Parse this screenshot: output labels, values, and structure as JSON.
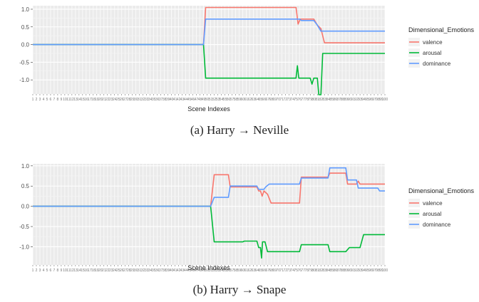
{
  "chart_data": [
    {
      "type": "line",
      "caption": "(a) Harry → Neville",
      "xlabel": "Scene Indexes",
      "ylabel": "",
      "ylim": [
        -1.4,
        1.1
      ],
      "yticks": [
        1.0,
        0.5,
        0.0,
        -0.5,
        -1.0
      ],
      "ytick_labels": [
        "1.0",
        "0.5",
        "0.0",
        "-0.5",
        "-1.0"
      ],
      "n_scenes": 100,
      "grid": true,
      "legend": {
        "title": "Dimensional_Emotions",
        "position": "right"
      },
      "series": [
        {
          "name": "valence",
          "color": "#F8766D",
          "points": [
            [
              0,
              0
            ],
            [
              48,
              0
            ],
            [
              48.6,
              1.05
            ],
            [
              74,
              1.05
            ],
            [
              74.6,
              0.58
            ],
            [
              75.2,
              0.72
            ],
            [
              79,
              0.72
            ],
            [
              80,
              0.55
            ],
            [
              81,
              0.45
            ],
            [
              82,
              0.05
            ],
            [
              99,
              0.05
            ]
          ]
        },
        {
          "name": "arousal",
          "color": "#00BA38",
          "points": [
            [
              0,
              0
            ],
            [
              48,
              0
            ],
            [
              48.6,
              -0.95
            ],
            [
              74,
              -0.95
            ],
            [
              74.4,
              -0.6
            ],
            [
              74.8,
              -0.95
            ],
            [
              78,
              -0.95
            ],
            [
              78.5,
              -1.12
            ],
            [
              79,
              -0.95
            ],
            [
              80,
              -0.95
            ],
            [
              80.4,
              -1.42
            ],
            [
              81,
              -1.42
            ],
            [
              81.5,
              -0.25
            ],
            [
              99,
              -0.25
            ]
          ]
        },
        {
          "name": "dominance",
          "color": "#619CFF",
          "points": [
            [
              0,
              0
            ],
            [
              48,
              0
            ],
            [
              48.6,
              0.72
            ],
            [
              75,
              0.72
            ],
            [
              75.5,
              0.68
            ],
            [
              79,
              0.68
            ],
            [
              80,
              0.55
            ],
            [
              81,
              0.38
            ],
            [
              99,
              0.38
            ]
          ]
        }
      ]
    },
    {
      "type": "line",
      "caption": "(b) Harry → Snape",
      "xlabel": "Scene Indexes",
      "ylabel": "",
      "ylim": [
        -1.45,
        1.05
      ],
      "yticks": [
        1.0,
        0.5,
        0.0,
        -0.5,
        -1.0
      ],
      "ytick_labels": [
        "1.0",
        "0.5",
        "0.0",
        "-0.5",
        "-1.0"
      ],
      "n_scenes": 100,
      "grid": true,
      "legend": {
        "title": "Dimensional_Emotions",
        "position": "right"
      },
      "series": [
        {
          "name": "valence",
          "color": "#F8766D",
          "points": [
            [
              0,
              0
            ],
            [
              50,
              0
            ],
            [
              51,
              0.78
            ],
            [
              55,
              0.78
            ],
            [
              55.5,
              0.48
            ],
            [
              63,
              0.48
            ],
            [
              63.5,
              0.38
            ],
            [
              64,
              0.38
            ],
            [
              64.5,
              0.25
            ],
            [
              65,
              0.38
            ],
            [
              66,
              0.3
            ],
            [
              67,
              0.08
            ],
            [
              75,
              0.08
            ],
            [
              75.5,
              0.72
            ],
            [
              83,
              0.72
            ],
            [
              83.5,
              0.82
            ],
            [
              88,
              0.82
            ],
            [
              88.5,
              0.55
            ],
            [
              91,
              0.55
            ],
            [
              91.5,
              0.62
            ],
            [
              92,
              0.55
            ],
            [
              99,
              0.55
            ]
          ]
        },
        {
          "name": "arousal",
          "color": "#00BA38",
          "points": [
            [
              0,
              0
            ],
            [
              50,
              0
            ],
            [
              51,
              -0.88
            ],
            [
              59,
              -0.88
            ],
            [
              59.5,
              -0.86
            ],
            [
              63,
              -0.86
            ],
            [
              63.5,
              -1.02
            ],
            [
              64,
              -1.02
            ],
            [
              64.3,
              -1.28
            ],
            [
              64.6,
              -0.88
            ],
            [
              65.3,
              -0.88
            ],
            [
              66,
              -1.12
            ],
            [
              75,
              -1.12
            ],
            [
              75.5,
              -0.95
            ],
            [
              83,
              -0.95
            ],
            [
              83.5,
              -1.12
            ],
            [
              88,
              -1.12
            ],
            [
              89,
              -1.02
            ],
            [
              92,
              -1.02
            ],
            [
              93,
              -0.7
            ],
            [
              99,
              -0.7
            ]
          ]
        },
        {
          "name": "dominance",
          "color": "#619CFF",
          "points": [
            [
              0,
              0
            ],
            [
              50,
              0
            ],
            [
              51,
              0.22
            ],
            [
              55,
              0.22
            ],
            [
              55.5,
              0.5
            ],
            [
              63,
              0.5
            ],
            [
              63.5,
              0.42
            ],
            [
              65,
              0.42
            ],
            [
              65.5,
              0.48
            ],
            [
              66.5,
              0.55
            ],
            [
              75,
              0.55
            ],
            [
              75.5,
              0.7
            ],
            [
              83,
              0.7
            ],
            [
              83.5,
              0.95
            ],
            [
              88,
              0.95
            ],
            [
              88.5,
              0.65
            ],
            [
              91,
              0.65
            ],
            [
              91.5,
              0.45
            ],
            [
              97,
              0.45
            ],
            [
              97.5,
              0.38
            ],
            [
              99,
              0.38
            ]
          ]
        }
      ]
    }
  ]
}
